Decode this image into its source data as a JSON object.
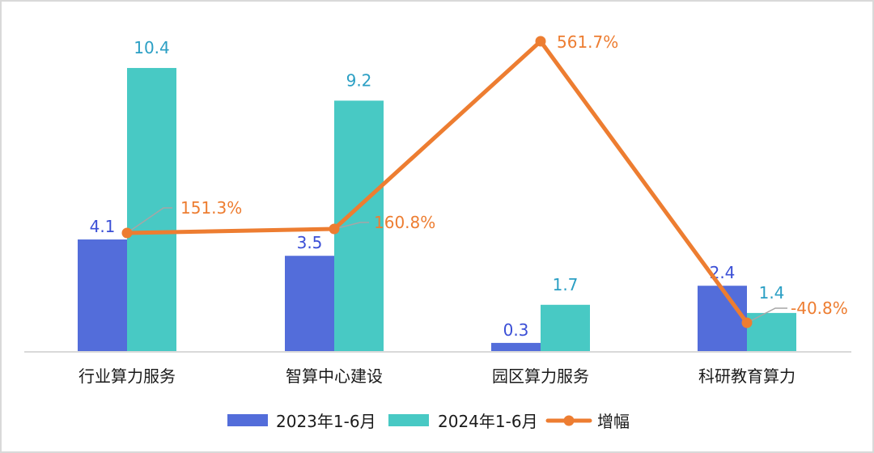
{
  "chart_data": {
    "type": "bar+line",
    "title": "",
    "categories": [
      "行业算力服务",
      "智算中心建设",
      "园区算力服务",
      "科研教育算力"
    ],
    "series": [
      {
        "name": "2023年1-6月",
        "type": "bar",
        "color": "#536dda",
        "label_color": "#3b4fd6",
        "values": [
          4.1,
          3.5,
          0.3,
          2.4
        ],
        "labels": [
          "4.1",
          "3.5",
          "0.3",
          "2.4"
        ]
      },
      {
        "name": "2024年1-6月",
        "type": "bar",
        "color": "#48c9c4",
        "label_color": "#2b9fc4",
        "values": [
          10.4,
          9.2,
          1.7,
          1.4
        ],
        "labels": [
          "10.4",
          "9.2",
          "1.7",
          "1.4"
        ]
      },
      {
        "name": "增幅",
        "type": "line",
        "color": "#ed7d31",
        "values": [
          151.3,
          160.8,
          561.7,
          -40.8
        ],
        "labels": [
          "151.3%",
          "160.8%",
          "561.7%",
          "-40.8%"
        ],
        "unit": "%"
      }
    ],
    "xlabel": "",
    "ylabel": "",
    "axes_visible": false,
    "grid": false,
    "legend_position": "bottom"
  },
  "legend": {
    "items": [
      {
        "label": "2023年1-6月",
        "color": "#536dda",
        "kind": "bar"
      },
      {
        "label": "2024年1-6月",
        "color": "#48c9c4",
        "kind": "bar"
      },
      {
        "label": "增幅",
        "color": "#ed7d31",
        "kind": "line"
      }
    ]
  }
}
